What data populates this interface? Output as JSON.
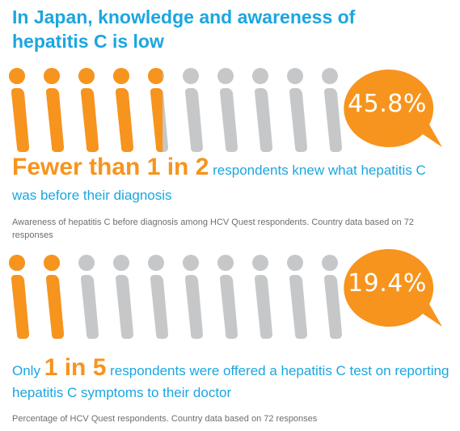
{
  "title": "In Japan, knowledge and awareness of hepatitis C is low",
  "colors": {
    "orange": "#f7941d",
    "grey": "#c6c7c9",
    "blue": "#1ba6e0",
    "note": "#6d6e71"
  },
  "stat1": {
    "fraction_filled": 0.458,
    "persons_total": 10,
    "value_label": "45.8%",
    "lead": "Fewer than 1 in 2",
    "rest_line1": "respondents knew what hepatitis C",
    "rest_line2": "was before their diagnosis",
    "note": "Awareness of hepatitis C before diagnosis among HCV Quest respondents. Country data based on 72 responses"
  },
  "stat2": {
    "fraction_filled": 0.194,
    "persons_total": 10,
    "value_label": "19.4%",
    "prefix": "Only",
    "lead": "1 in 5",
    "rest_line1": "respondents were offered a hepatitis C test on reporting",
    "rest_line2": "hepatitis C symptoms to their doctor",
    "note": "Percentage of HCV Quest respondents. Country data based on 72 responses"
  }
}
